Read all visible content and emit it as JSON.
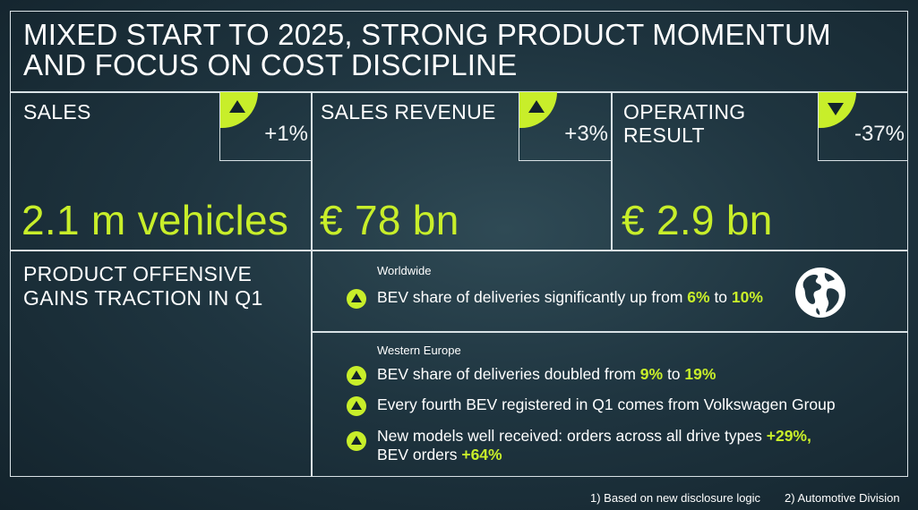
{
  "title": {
    "line1": "MIXED START TO 2025, STRONG PRODUCT MOMENTUM",
    "line2": "AND FOCUS ON COST DISCIPLINE"
  },
  "colors": {
    "accent": "#c8ee2a",
    "background": "#1f3540",
    "border": "#d9e2e6"
  },
  "kpis": [
    {
      "label_line1": "SALES",
      "label_line2": "",
      "change": "+1%",
      "direction": "up",
      "value": "2.1 m vehicles"
    },
    {
      "label_line1": "SALES REVENUE",
      "label_line2": "",
      "change": "+3%",
      "direction": "up",
      "value": "€ 78 bn"
    },
    {
      "label_line1": "OPERATING",
      "label_line2": "RESULT",
      "change": "-37%",
      "direction": "down",
      "value": "€ 2.9 bn"
    }
  ],
  "product": {
    "title_line1": "PRODUCT OFFENSIVE",
    "title_line2": "GAINS TRACTION IN Q1",
    "worldwide": {
      "region": "Worldwide",
      "icon": "globe-icon",
      "bullets": [
        {
          "pre": "BEV share of deliveries significantly up from ",
          "h1": "6%",
          "mid": " to ",
          "h2": "10%"
        }
      ]
    },
    "western_europe": {
      "region": "Western Europe",
      "b1": {
        "pre": "BEV share of deliveries doubled from ",
        "h1": "9%",
        "mid": " to ",
        "h2": "19%"
      },
      "b2": {
        "text": "Every fourth BEV registered in Q1 comes from Volkswagen Group"
      },
      "b3": {
        "pre": "New models well received: orders across all drive types ",
        "h1": "+29%,",
        "line2_pre": "BEV orders ",
        "h2": "+64%"
      }
    }
  },
  "footnotes": {
    "f1": "1)  Based on new disclosure logic",
    "f2": "2) Automotive Division"
  }
}
